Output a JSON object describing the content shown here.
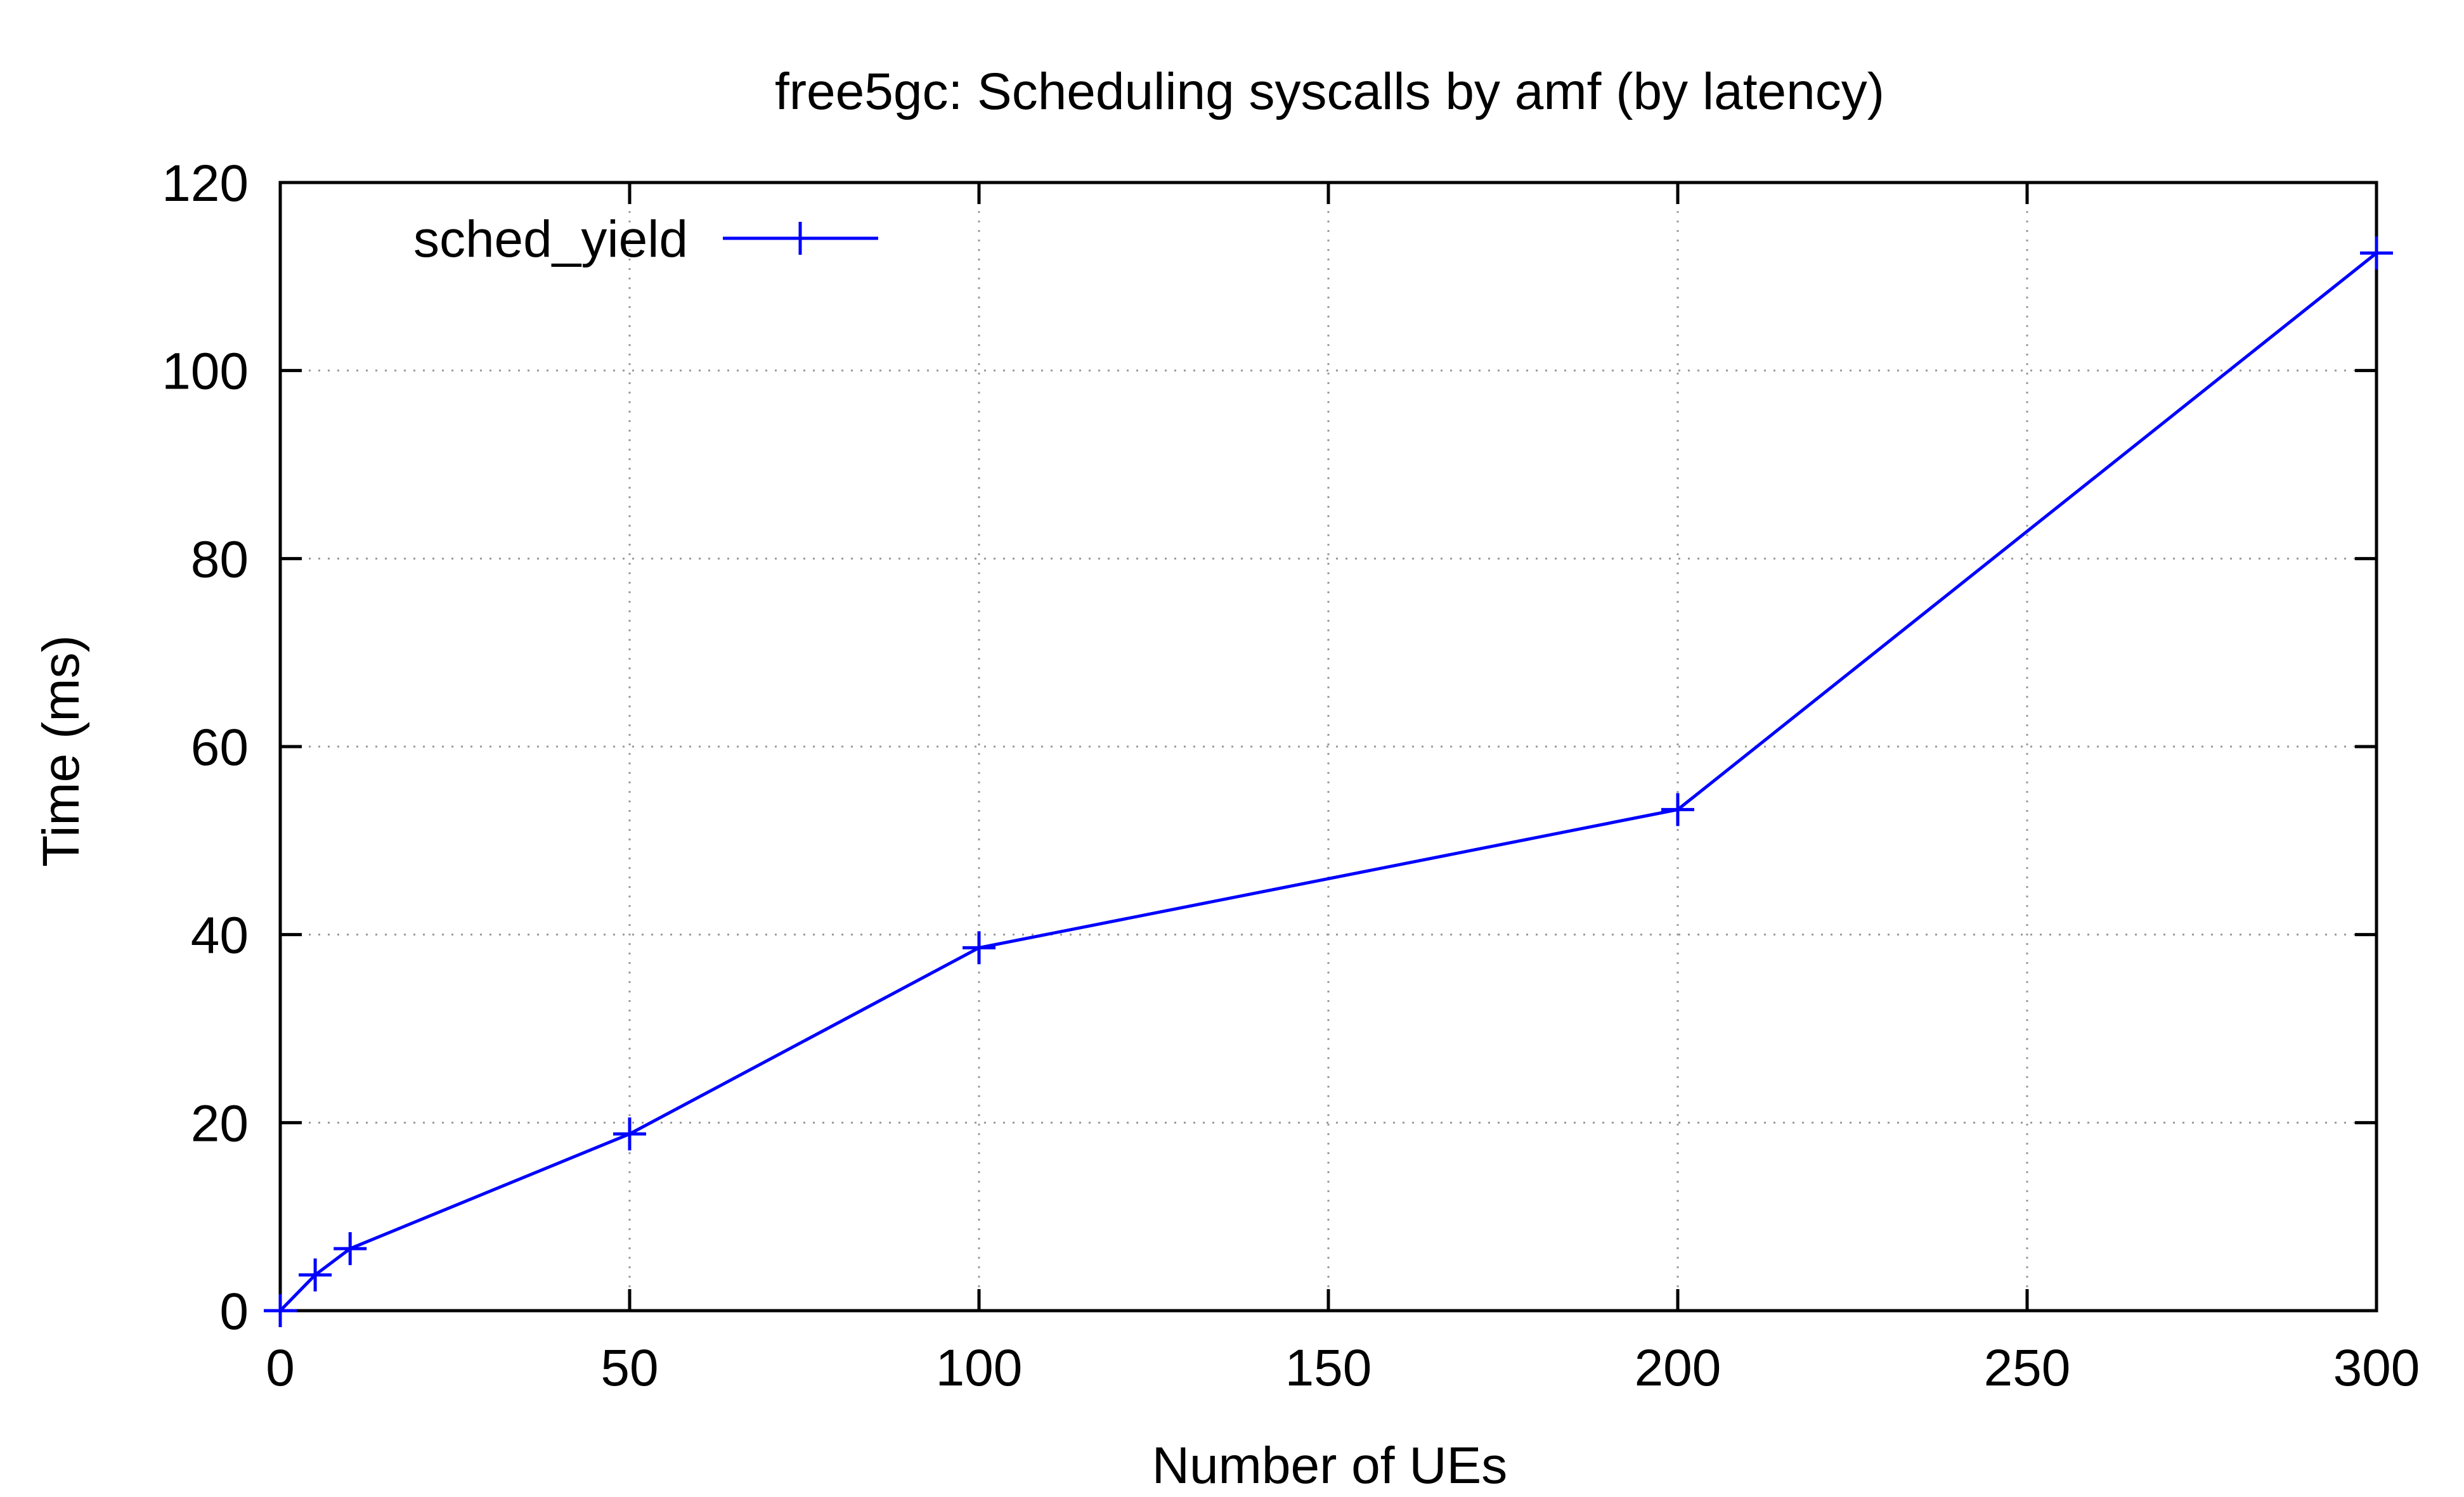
{
  "chart_data": {
    "type": "line",
    "title": "free5gc: Scheduling syscalls by amf (by latency)",
    "xlabel": "Number of UEs",
    "ylabel": "Time (ms)",
    "xlim": [
      0,
      300
    ],
    "ylim": [
      0,
      120
    ],
    "xticks": [
      0,
      50,
      100,
      150,
      200,
      250,
      300
    ],
    "yticks": [
      0,
      20,
      40,
      60,
      80,
      100,
      120
    ],
    "xtick_labels": [
      "0",
      "50",
      "100",
      "150",
      "200",
      "250",
      "300"
    ],
    "ytick_labels": [
      "0",
      "20",
      "40",
      "60",
      "80",
      "100",
      "120"
    ],
    "grid": true,
    "legend_position": "top-left",
    "series": [
      {
        "name": "sched_yield",
        "color": "#0000ff",
        "marker": "plus",
        "x": [
          0,
          5,
          10,
          50,
          100,
          200,
          300
        ],
        "y": [
          0,
          3.8,
          6.6,
          18.8,
          38.6,
          53.3,
          112.5
        ]
      }
    ]
  }
}
